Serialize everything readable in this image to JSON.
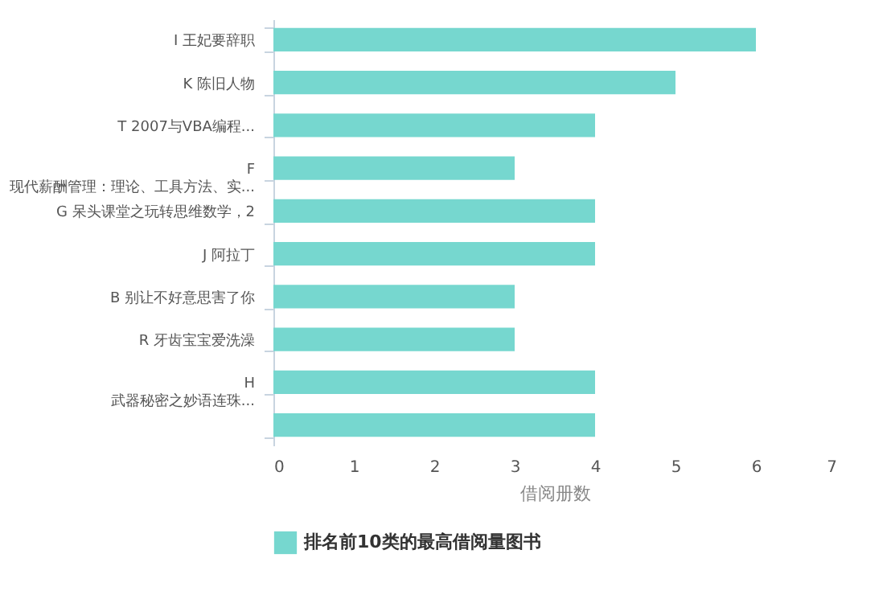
{
  "chart_data": {
    "type": "bar",
    "orientation": "horizontal",
    "xlabel": "借阅册数",
    "categories": [
      "I 王妃要辞职",
      "K 陈旧人物",
      "T 2007与VBA编程...",
      "F\n现代薪酬管理：理论、工具方法、实...",
      "G 呆头课堂之玩转思维数学，2",
      "J 阿拉丁",
      "B 别让不好意思害了你",
      "R 牙齿宝宝爱洗澡",
      "H\n武器秘密之妙语连珠...",
      null
    ],
    "series": [
      {
        "name": "排名前10类的最高借阅量图书",
        "color": "#76d7cf",
        "values": [
          6,
          5,
          4,
          3,
          4,
          4,
          3,
          3,
          4,
          4
        ]
      }
    ],
    "xlim": [
      0,
      7
    ],
    "xticks": [
      0,
      1,
      2,
      3,
      4,
      5,
      6,
      7
    ],
    "grid": false,
    "legend": "bottom"
  }
}
